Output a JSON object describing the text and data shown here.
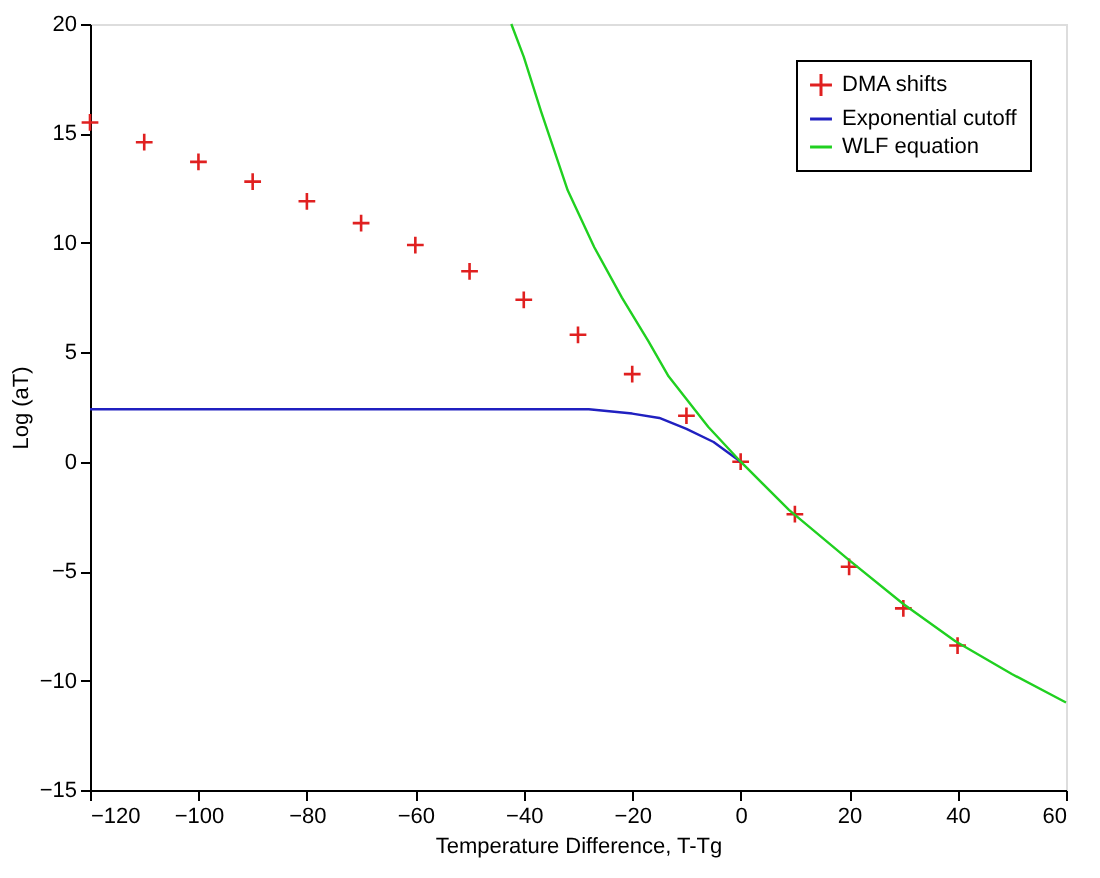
{
  "chart_data": {
    "type": "line",
    "xlabel": "Temperature Difference, T-Tg",
    "ylabel": "Log (aT)",
    "xlim": [
      -120,
      60
    ],
    "ylim": [
      -15,
      20
    ],
    "xticks": [
      -120,
      -100,
      -80,
      -60,
      -40,
      -20,
      0,
      20,
      40,
      60
    ],
    "yticks": [
      -15,
      -10,
      -5,
      0,
      5,
      10,
      15,
      20
    ],
    "grid": false,
    "legend": "top right",
    "line_style": "solid",
    "series": [
      {
        "name": "DMA shifts",
        "type": "scatter",
        "marker": "cross",
        "color": "#e02020",
        "x": [
          -120,
          -110,
          -100,
          -90,
          -80,
          -70,
          -60,
          -50,
          -40,
          -30,
          -20,
          -10,
          0,
          10,
          20,
          30,
          40
        ],
        "values": [
          15.5,
          14.6,
          13.7,
          12.8,
          11.9,
          10.9,
          9.9,
          8.7,
          7.4,
          5.8,
          4.0,
          2.1,
          0,
          -2.4,
          -4.8,
          -6.7,
          -8.4
        ]
      },
      {
        "name": "Exponential cutoff",
        "color": "#2020c0",
        "x": [
          -120,
          -80,
          -50,
          -35,
          -28,
          -20,
          -15,
          -10,
          -5,
          0
        ],
        "values": [
          2.4,
          2.4,
          2.4,
          2.4,
          2.4,
          2.2,
          2.0,
          1.5,
          0.9,
          0
        ]
      },
      {
        "name": "WLF equation",
        "color": "#20d020",
        "x": [
          -42.3,
          -40,
          -36.8,
          -31.9,
          -27,
          -21.9,
          -17,
          -13.3,
          -6,
          0,
          8.9,
          20,
          30,
          39.6,
          50,
          60
        ],
        "values": [
          20,
          18.5,
          16.0,
          12.4,
          9.8,
          7.5,
          5.5,
          3.9,
          1.6,
          0,
          -2.2,
          -4.5,
          -6.5,
          -8.2,
          -9.7,
          -11.0
        ]
      }
    ]
  }
}
